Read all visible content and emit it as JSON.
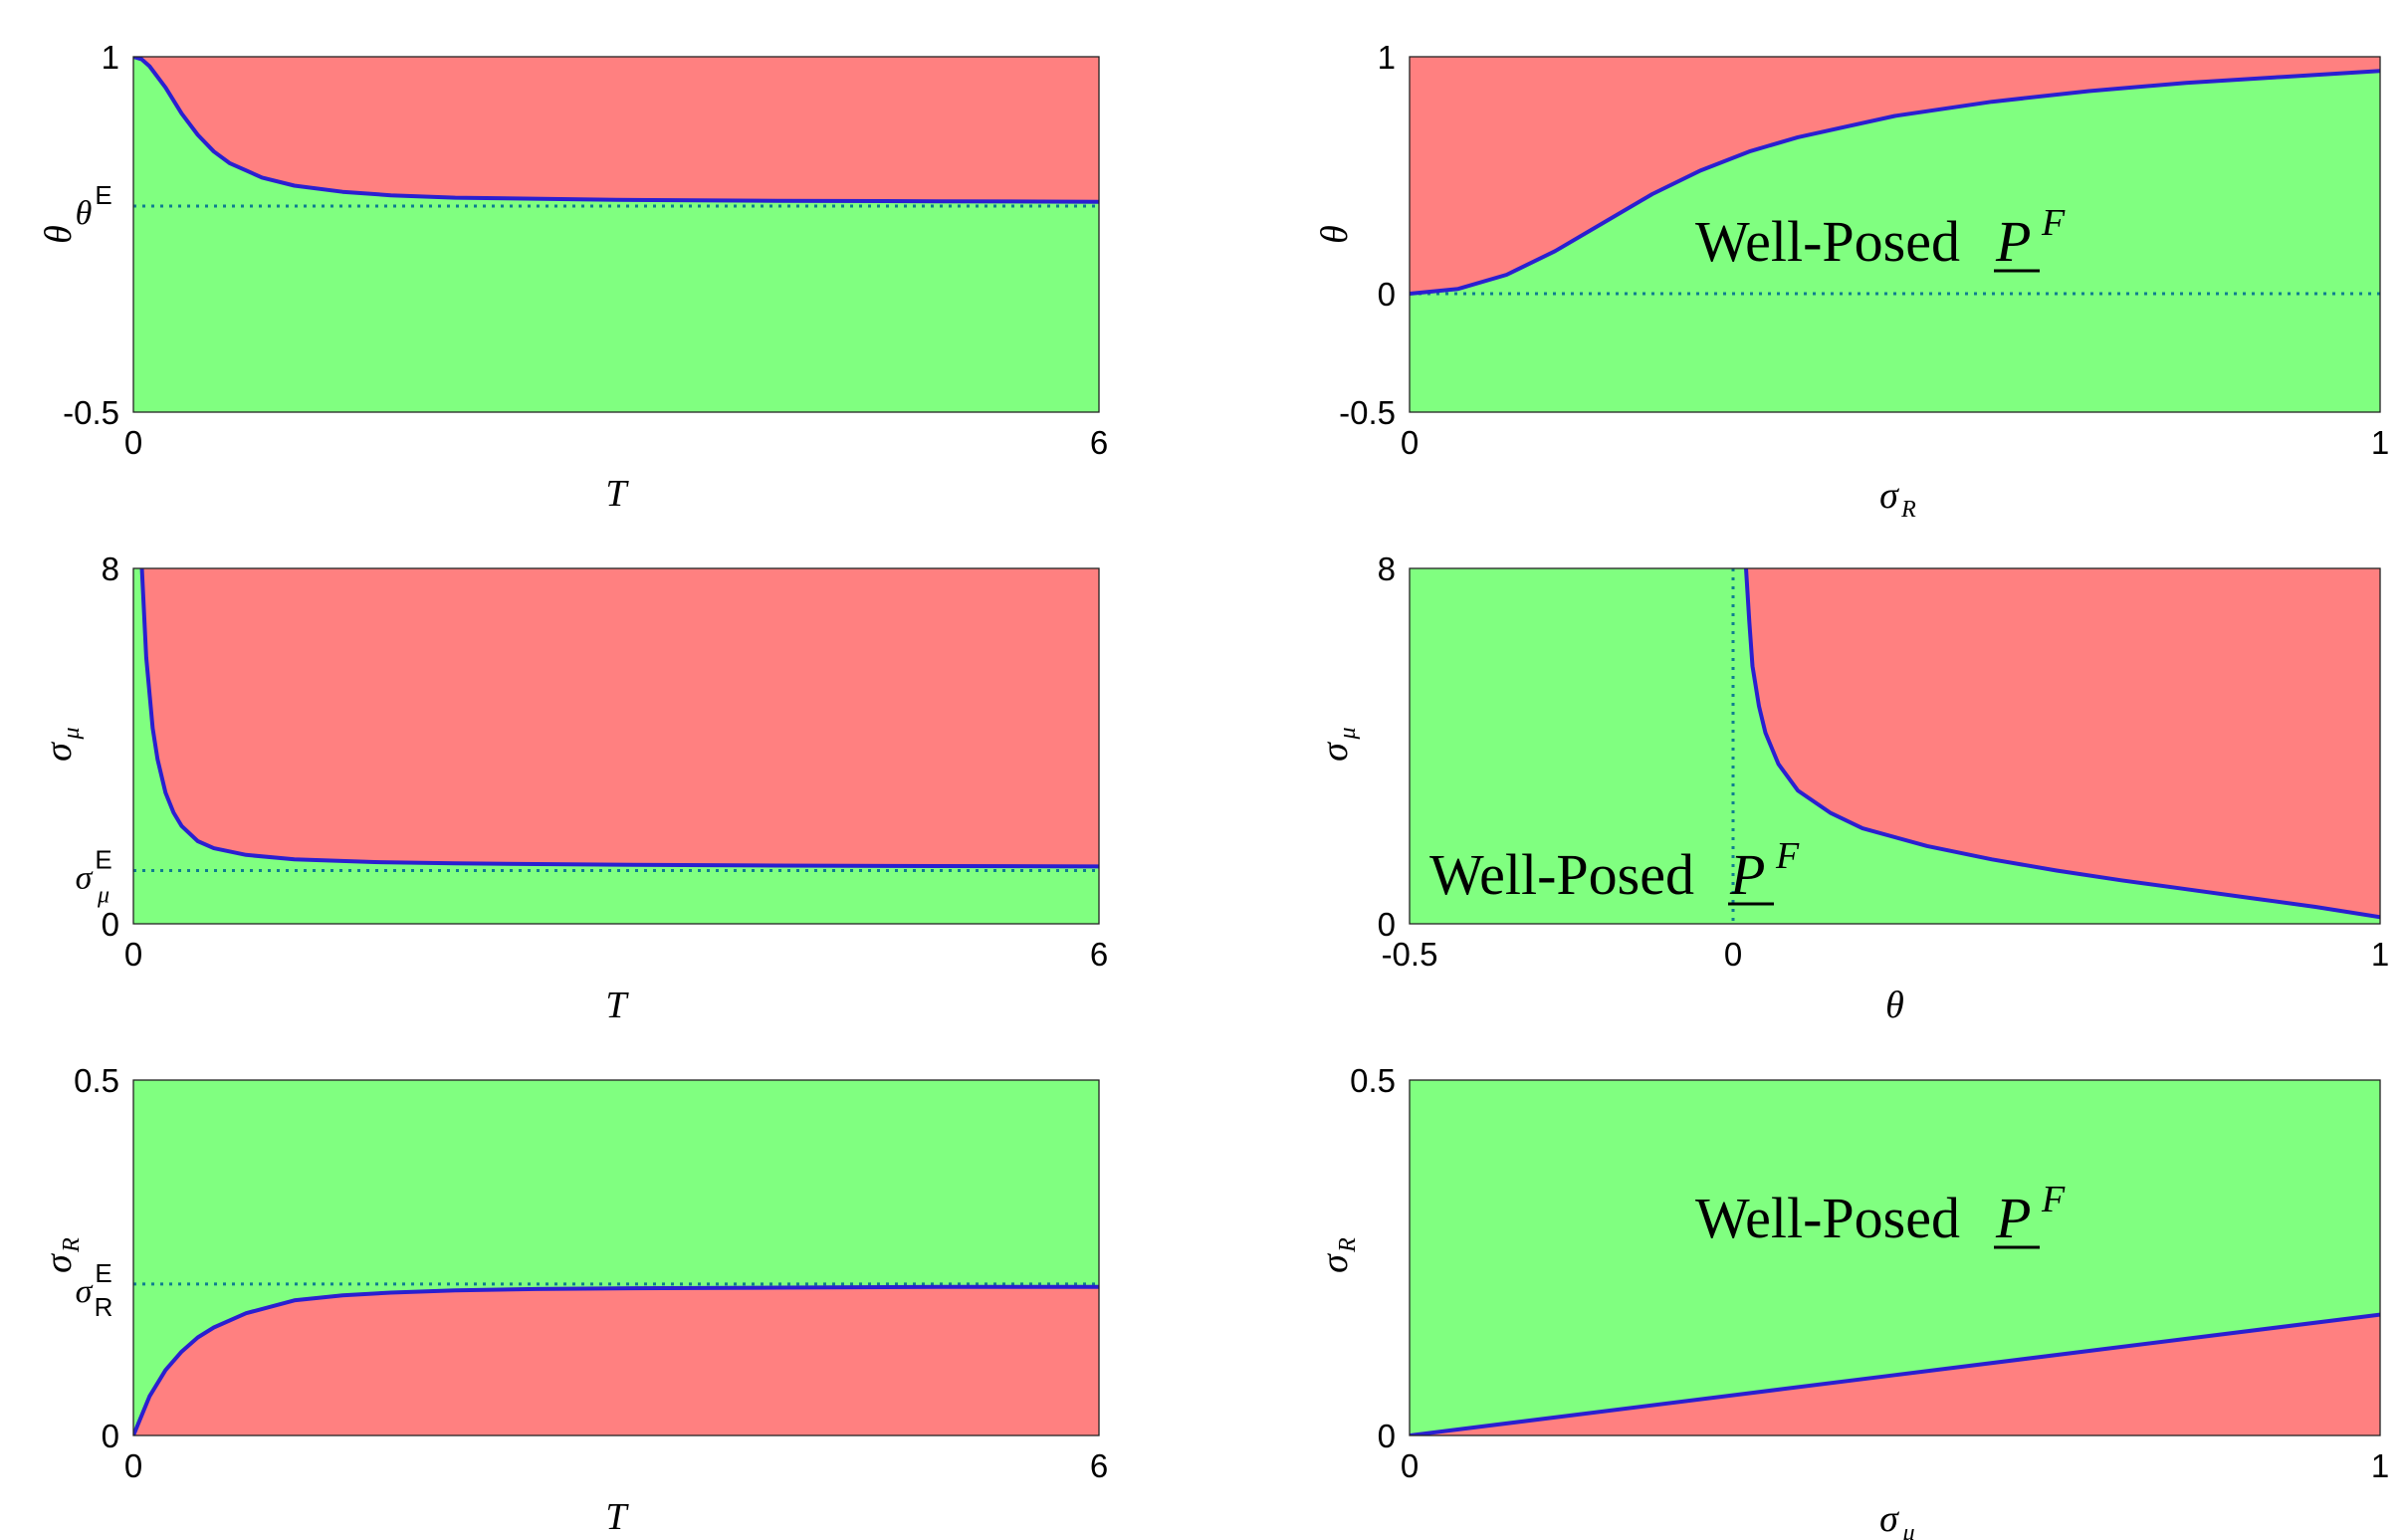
{
  "colors": {
    "well_posed_region": "#80ff80",
    "ill_posed_region": "#ff8080",
    "boundary_curve": "#2a1fd0",
    "reference_line": "#0e7e8f"
  },
  "chart_data": [
    {
      "type": "area",
      "xlabel": "T",
      "ylabel": "θ",
      "xlim": [
        0,
        6
      ],
      "ylim": [
        -0.5,
        1
      ],
      "xticks": [
        "0",
        "6"
      ],
      "yticks": [
        "-0.5",
        "1"
      ],
      "reference": {
        "symbol": "θ",
        "sup": "E",
        "axis": "y",
        "value": 0.37
      },
      "boundary": {
        "x": [
          0,
          0.05,
          0.1,
          0.2,
          0.3,
          0.4,
          0.5,
          0.6,
          0.8,
          1.0,
          1.3,
          1.6,
          2.0,
          3.0,
          4.0,
          5.0,
          6.0
        ],
        "y": [
          1.0,
          0.99,
          0.96,
          0.87,
          0.76,
          0.67,
          0.6,
          0.55,
          0.49,
          0.456,
          0.43,
          0.415,
          0.405,
          0.396,
          0.392,
          0.39,
          0.388
        ]
      },
      "region_above": "ill_posed",
      "region_below": "well_posed",
      "annotation": ""
    },
    {
      "type": "area",
      "xlabel": "σR",
      "ylabel": "θ",
      "xlim": [
        0,
        1
      ],
      "ylim": [
        -0.5,
        1
      ],
      "xticks": [
        "0",
        "1"
      ],
      "yticks": [
        "-0.5",
        "0",
        "1"
      ],
      "reference": {
        "axis": "y",
        "value": 0
      },
      "boundary": {
        "x": [
          0,
          0.05,
          0.1,
          0.15,
          0.2,
          0.25,
          0.3,
          0.35,
          0.4,
          0.5,
          0.6,
          0.7,
          0.8,
          0.9,
          1.0
        ],
        "y": [
          0,
          0.02,
          0.08,
          0.18,
          0.3,
          0.42,
          0.52,
          0.6,
          0.66,
          0.75,
          0.81,
          0.855,
          0.89,
          0.915,
          0.94
        ]
      },
      "region_above": "ill_posed",
      "region_below": "well_posed",
      "annotation": "Well-Posed",
      "annotation_symbol": "P",
      "annotation_sup": "F"
    },
    {
      "type": "area",
      "xlabel": "T",
      "ylabel": "σμ",
      "xlim": [
        0,
        6
      ],
      "ylim": [
        0,
        8
      ],
      "xticks": [
        "0",
        "6"
      ],
      "yticks": [
        "0",
        "8"
      ],
      "reference": {
        "symbol": "σ",
        "sub": "μ",
        "sup": "E",
        "axis": "y",
        "value": 1.2
      },
      "boundary": {
        "x": [
          0.05,
          0.08,
          0.12,
          0.15,
          0.2,
          0.25,
          0.3,
          0.4,
          0.5,
          0.7,
          1.0,
          1.5,
          2.0,
          3.0,
          4.0,
          5.0,
          6.0
        ],
        "y": [
          8.2,
          6.0,
          4.4,
          3.7,
          2.95,
          2.5,
          2.2,
          1.86,
          1.7,
          1.55,
          1.45,
          1.39,
          1.36,
          1.33,
          1.31,
          1.3,
          1.29
        ]
      },
      "region_above": "ill_posed",
      "region_below": "well_posed",
      "annotation": ""
    },
    {
      "type": "area",
      "xlabel": "θ",
      "ylabel": "σμ",
      "xlim": [
        -0.5,
        1
      ],
      "ylim": [
        0,
        8
      ],
      "xticks": [
        "-0.5",
        "0",
        "1"
      ],
      "yticks": [
        "0",
        "8"
      ],
      "reference": {
        "axis": "x",
        "value": 0
      },
      "boundary": {
        "x": [
          0.02,
          0.025,
          0.03,
          0.04,
          0.05,
          0.07,
          0.1,
          0.15,
          0.2,
          0.3,
          0.4,
          0.5,
          0.6,
          0.7,
          0.8,
          0.9,
          1.0
        ],
        "y": [
          8.0,
          6.8,
          5.8,
          4.9,
          4.3,
          3.6,
          3.0,
          2.5,
          2.15,
          1.75,
          1.45,
          1.2,
          0.98,
          0.78,
          0.58,
          0.38,
          0.15
        ]
      },
      "region_above": "ill_posed",
      "region_below": "well_posed",
      "annotation": "Well-Posed",
      "annotation_symbol": "P",
      "annotation_sup": "F"
    },
    {
      "type": "area",
      "xlabel": "T",
      "ylabel": "σR",
      "xlim": [
        0,
        6
      ],
      "ylim": [
        0,
        0.5
      ],
      "xticks": [
        "0",
        "6"
      ],
      "yticks": [
        "0",
        "0.5"
      ],
      "reference": {
        "symbol": "σ",
        "sub": "R",
        "sup": "E",
        "axis": "y",
        "value": 0.213
      },
      "boundary": {
        "x": [
          0,
          0.1,
          0.2,
          0.3,
          0.4,
          0.5,
          0.7,
          1.0,
          1.3,
          1.6,
          2.0,
          2.5,
          3.0,
          4.0,
          5.0,
          6.0
        ],
        "y": [
          0,
          0.055,
          0.092,
          0.118,
          0.138,
          0.152,
          0.172,
          0.19,
          0.197,
          0.201,
          0.204,
          0.206,
          0.207,
          0.208,
          0.209,
          0.209
        ]
      },
      "region_above": "well_posed",
      "region_below": "ill_posed",
      "annotation": ""
    },
    {
      "type": "area",
      "xlabel": "σμ",
      "ylabel": "σR",
      "xlim": [
        0,
        1
      ],
      "ylim": [
        0,
        0.5
      ],
      "xticks": [
        "0",
        "1"
      ],
      "yticks": [
        "0",
        "0.5"
      ],
      "reference": null,
      "boundary": {
        "x": [
          0,
          0.5,
          1.0
        ],
        "y": [
          0,
          0.085,
          0.17
        ]
      },
      "region_above": "well_posed",
      "region_below": "ill_posed",
      "annotation": "Well-Posed",
      "annotation_symbol": "P",
      "annotation_sup": "F"
    }
  ]
}
